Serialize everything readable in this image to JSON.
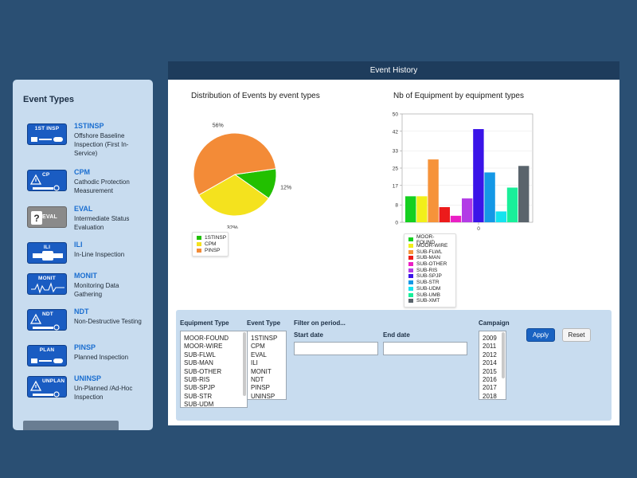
{
  "sidebar": {
    "title": "Event Types",
    "items": [
      {
        "icon_caption": "1ST INSP",
        "code": "1STINSP",
        "desc": "Offshore Baseline Inspection (First In-Service)",
        "icon": "pipe-inspection-icon"
      },
      {
        "icon_caption": "CP",
        "code": "CPM",
        "desc": "Cathodic Protection Measurement",
        "icon": "warning-pipe-icon"
      },
      {
        "icon_caption": "EVAL",
        "code": "EVAL",
        "desc": "Intermediate Status Evaluation",
        "icon": "question-icon"
      },
      {
        "icon_caption": "ILI",
        "code": "ILI",
        "desc": "In-Line Inspection",
        "icon": "inline-pig-icon"
      },
      {
        "icon_caption": "MONIT",
        "code": "MONIT",
        "desc": "Monitoring Data Gathering",
        "icon": "signal-wave-icon"
      },
      {
        "icon_caption": "NDT",
        "code": "NDT",
        "desc": "Non-Destructive Testing",
        "icon": "warning-pipe-icon"
      },
      {
        "icon_caption": "PLAN",
        "code": "PINSP",
        "desc": "Planned Inspection",
        "icon": "pipe-inspection-icon"
      },
      {
        "icon_caption": "UNPLAN",
        "code": "UNINSP",
        "desc": "Un-Planned /Ad-Hoc Inspection",
        "icon": "warning-pipe-icon"
      }
    ]
  },
  "main": {
    "header": "Event History",
    "pie_title": "Distribution of Events by event types",
    "bar_title": "Nb of Equipment by equipment types"
  },
  "colors": {
    "header_bg": "#1e3c5c",
    "panel_bg": "#c8dcef",
    "accent": "#1a63c2"
  },
  "chart_data": [
    {
      "type": "pie",
      "title": "Distribution of Events by event types",
      "labels": [
        "1STINSP",
        "CPM",
        "PINSP"
      ],
      "values": [
        12,
        32,
        56
      ],
      "value_labels": [
        "12%",
        "32%",
        "56%"
      ],
      "colors": [
        "#22c000",
        "#f4e21e",
        "#f38b37"
      ],
      "legend": "bottom-left"
    },
    {
      "type": "bar",
      "title": "Nb of Equipment by equipment types",
      "categories": [
        "0"
      ],
      "ylim": [
        0,
        50
      ],
      "yticks": [
        0,
        8,
        17,
        25,
        33,
        42,
        50
      ],
      "grid": true,
      "legend": "bottom-left",
      "series": [
        {
          "name": "MOOR-FOUND",
          "value": 12,
          "color": "#15d020"
        },
        {
          "name": "MOOR-WIRE",
          "value": 12,
          "color": "#f2ef1a"
        },
        {
          "name": "SUB-FLWL",
          "value": 29,
          "color": "#f6933a"
        },
        {
          "name": "SUB-MAN",
          "value": 7,
          "color": "#ec1b1b"
        },
        {
          "name": "SUB-OTHER",
          "value": 3,
          "color": "#ea1fc4"
        },
        {
          "name": "SUB-RIS",
          "value": 11,
          "color": "#b23be6"
        },
        {
          "name": "SUB-SPJP",
          "value": 43,
          "color": "#3a14e8"
        },
        {
          "name": "SUB-STR",
          "value": 23,
          "color": "#1598e6"
        },
        {
          "name": "SUB-UDM",
          "value": 5,
          "color": "#14e3ef"
        },
        {
          "name": "SUB-UMB",
          "value": 16,
          "color": "#19ef9a"
        },
        {
          "name": "SUB-XMT",
          "value": 26,
          "color": "#5a646c"
        }
      ]
    }
  ],
  "filter": {
    "equipment_type_label": "Equipment Type",
    "equipment_types": [
      "MOOR-FOUND",
      "MOOR-WIRE",
      "SUB-FLWL",
      "SUB-MAN",
      "SUB-OTHER",
      "SUB-RIS",
      "SUB-SPJP",
      "SUB-STR",
      "SUB-UDM"
    ],
    "event_type_label": "Event Type",
    "event_types": [
      "1STINSP",
      "CPM",
      "EVAL",
      "ILI",
      "MONIT",
      "NDT",
      "PINSP",
      "UNINSP"
    ],
    "period_label": "Filter on period...",
    "start_label": "Start date",
    "start_value": "",
    "end_label": "End date",
    "end_value": "",
    "campaign_label": "Campaign",
    "campaigns": [
      "2009",
      "2011",
      "2012",
      "2014",
      "2015",
      "2016",
      "2017",
      "2018"
    ],
    "apply_label": "Apply",
    "reset_label": "Reset"
  }
}
